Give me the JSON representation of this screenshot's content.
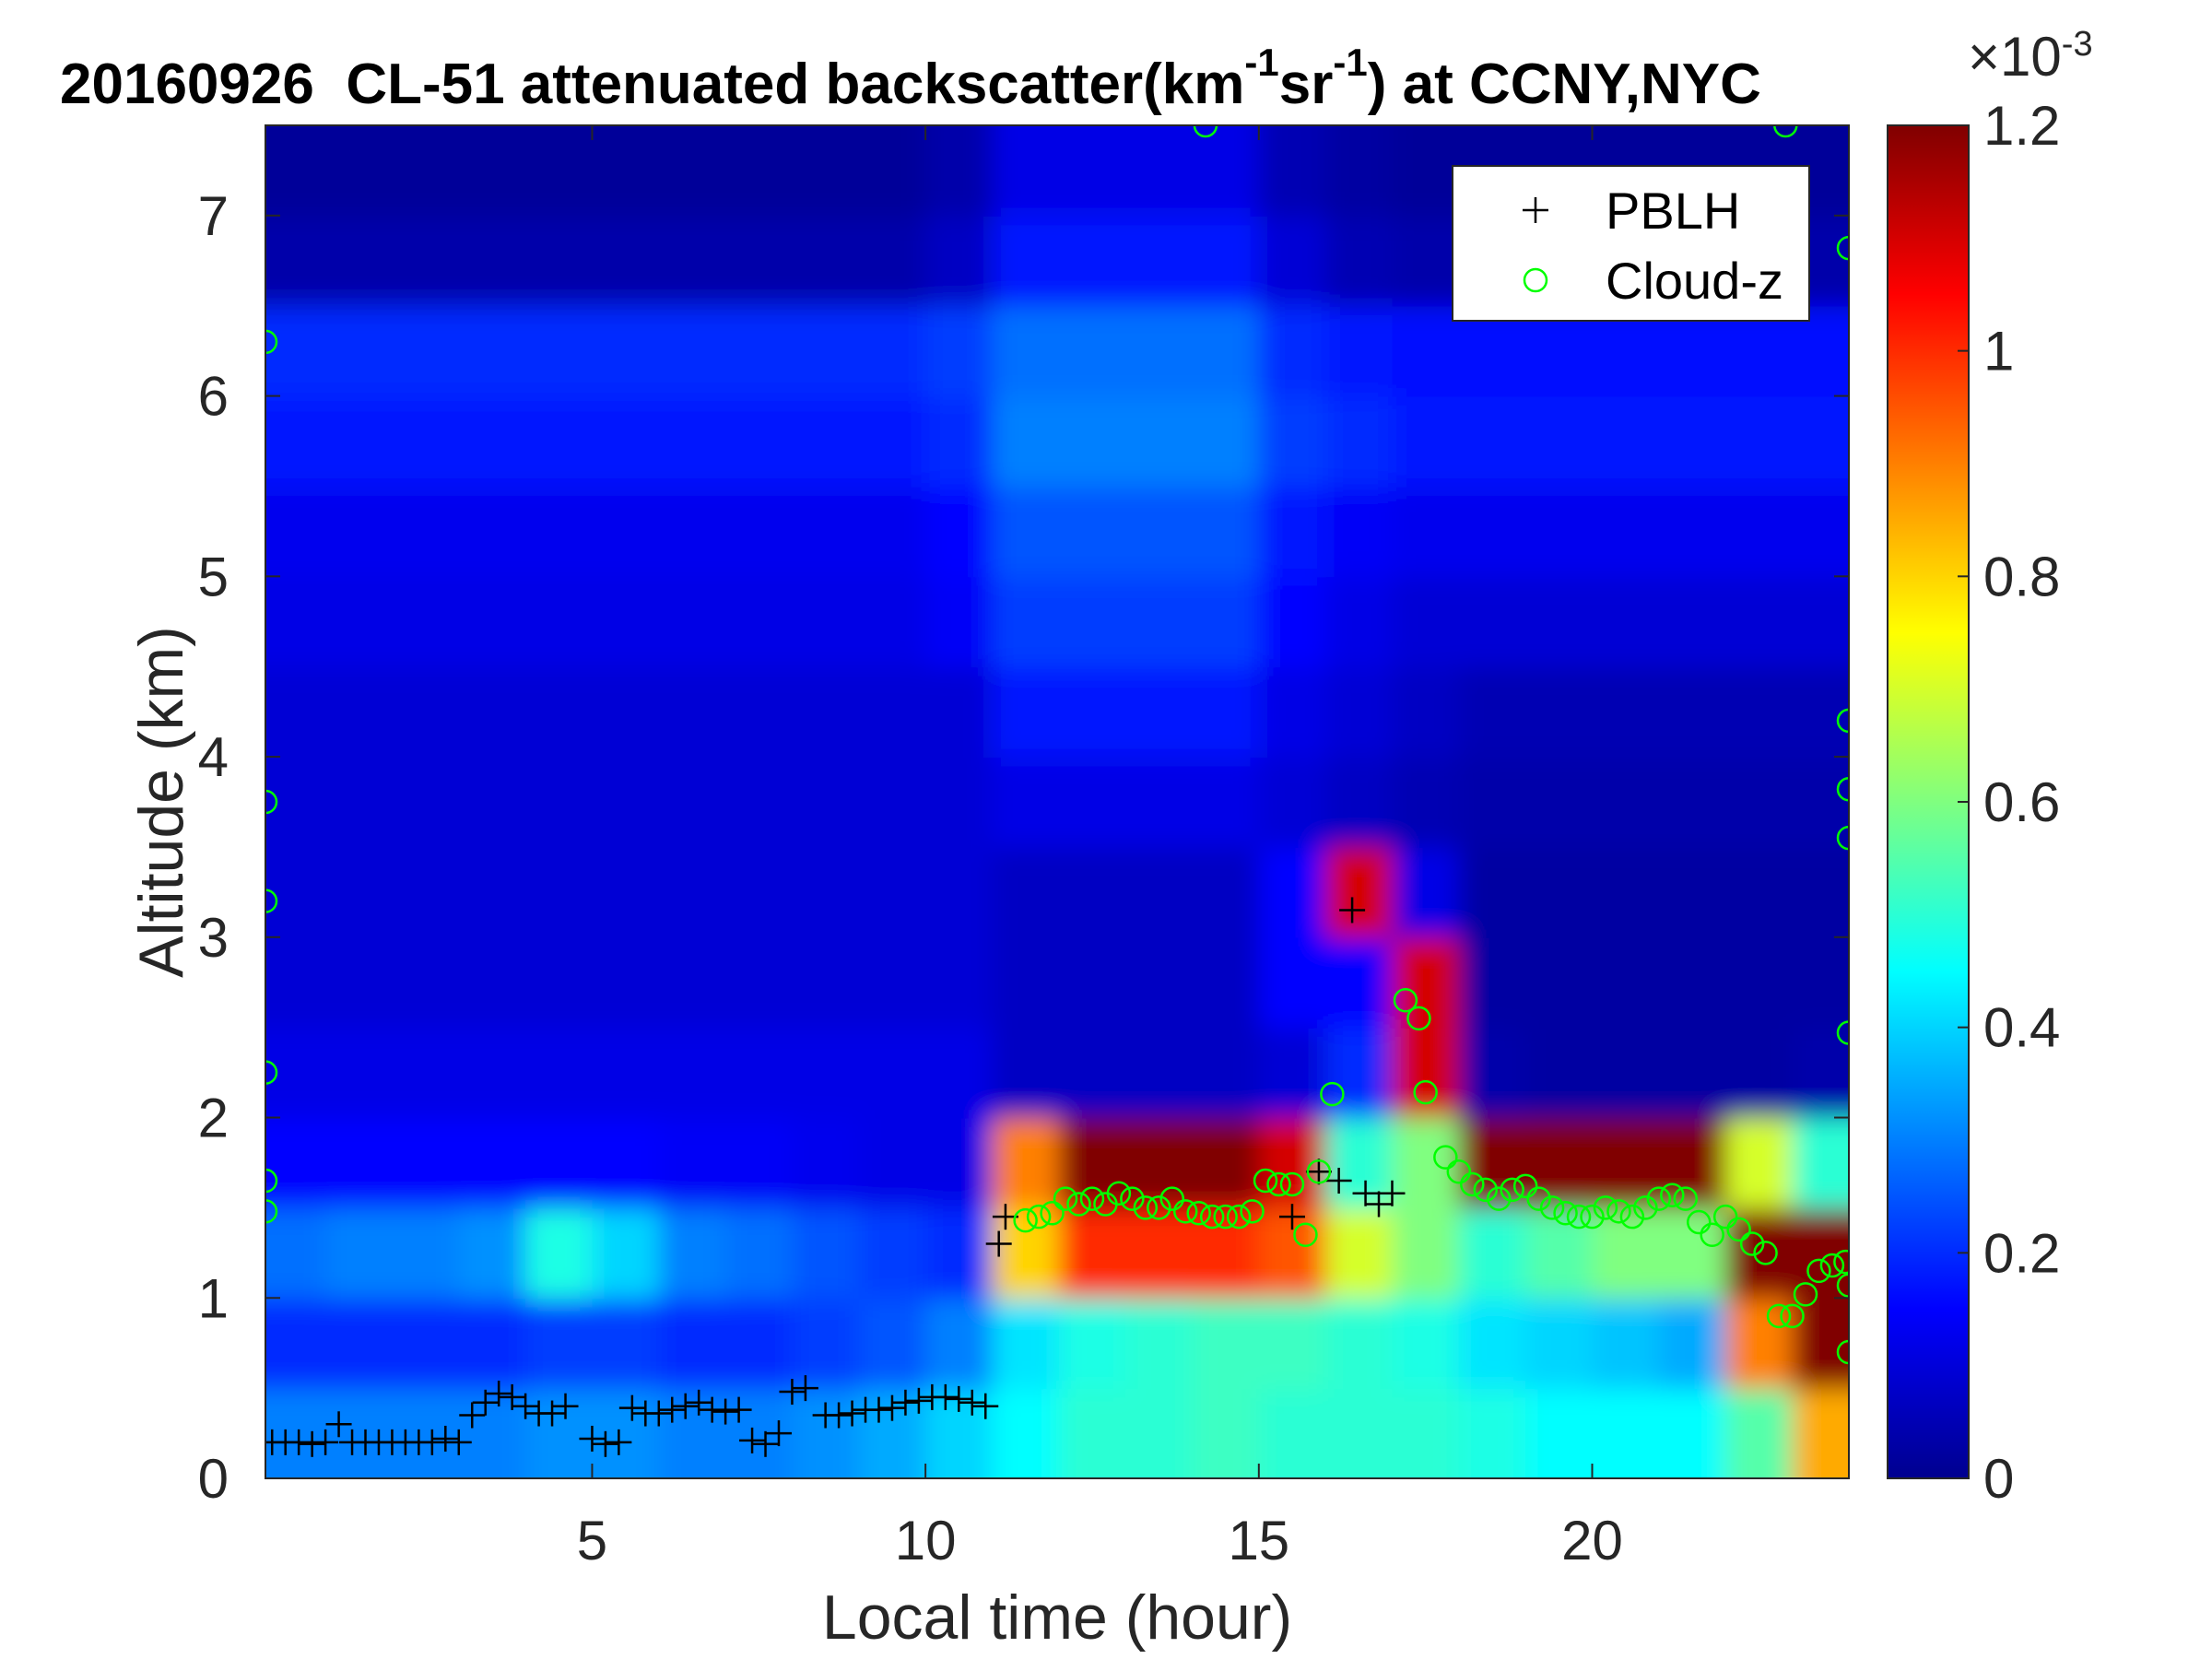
{
  "chart_data": {
    "type": "heatmap",
    "title": {
      "date": "20160926",
      "prefix": "CL-51 attenuated backscatter(km",
      "sup1": "-1",
      "mid": "sr",
      "sup2": "-1",
      "suffix": ") at CCNY,NYC"
    },
    "xlabel": "Local time (hour)",
    "ylabel": "Altitude (km)",
    "xlim": [
      0.1,
      23.85
    ],
    "ylim": [
      0,
      7.5
    ],
    "xticks": [
      5,
      10,
      15,
      20
    ],
    "yticks": [
      0,
      1,
      2,
      3,
      4,
      5,
      6,
      7
    ],
    "colorbar": {
      "range": [
        0,
        1.2
      ],
      "ticks": [
        "0",
        "0.2",
        "0.4",
        "0.6",
        "0.8",
        "1",
        "1.2"
      ],
      "multiplier_base": "10",
      "multiplier_exp": "-3",
      "multiplier_sign": "×",
      "colormap": "jet"
    },
    "grid": {
      "time_bin_hours": 1,
      "altitude_bin_km": 0.5,
      "units": "1e-3 km^-1 sr^-1",
      "rows_bottom_to_top": [
        [
          0.3,
          0.3,
          0.3,
          0.3,
          0.32,
          0.32,
          0.3,
          0.3,
          0.32,
          0.35,
          0.4,
          0.45,
          0.5,
          0.5,
          0.52,
          0.5,
          0.5,
          0.5,
          0.48,
          0.45,
          0.45,
          0.45,
          0.55,
          0.85
        ],
        [
          0.2,
          0.2,
          0.2,
          0.2,
          0.22,
          0.22,
          0.2,
          0.2,
          0.22,
          0.25,
          0.3,
          0.42,
          0.48,
          0.5,
          0.52,
          0.52,
          0.5,
          0.48,
          0.42,
          0.4,
          0.38,
          0.35,
          0.9,
          1.2
        ],
        [
          0.28,
          0.3,
          0.3,
          0.32,
          0.48,
          0.4,
          0.3,
          0.28,
          0.25,
          0.22,
          0.2,
          0.8,
          1.0,
          1.0,
          1.0,
          0.95,
          0.7,
          0.6,
          0.5,
          0.55,
          0.6,
          0.6,
          1.2,
          1.2
        ],
        [
          0.15,
          0.15,
          0.15,
          0.15,
          0.15,
          0.15,
          0.14,
          0.14,
          0.13,
          0.12,
          0.12,
          0.9,
          1.2,
          1.2,
          1.2,
          1.1,
          0.5,
          0.6,
          1.2,
          1.2,
          1.2,
          1.2,
          0.7,
          0.5
        ],
        [
          0.12,
          0.12,
          0.12,
          0.12,
          0.12,
          0.12,
          0.12,
          0.12,
          0.12,
          0.12,
          0.12,
          0.08,
          0.08,
          0.08,
          0.08,
          0.1,
          0.2,
          1.1,
          0.05,
          0.04,
          0.04,
          0.04,
          0.04,
          0.05
        ],
        [
          0.1,
          0.1,
          0.1,
          0.1,
          0.1,
          0.1,
          0.1,
          0.1,
          0.1,
          0.1,
          0.1,
          0.08,
          0.08,
          0.08,
          0.08,
          0.15,
          0.15,
          1.1,
          0.04,
          0.04,
          0.04,
          0.04,
          0.04,
          0.04
        ],
        [
          0.1,
          0.1,
          0.1,
          0.1,
          0.1,
          0.1,
          0.1,
          0.1,
          0.1,
          0.1,
          0.1,
          0.08,
          0.08,
          0.08,
          0.08,
          0.15,
          1.1,
          0.12,
          0.04,
          0.04,
          0.04,
          0.04,
          0.04,
          0.04
        ],
        [
          0.1,
          0.1,
          0.1,
          0.1,
          0.1,
          0.1,
          0.1,
          0.1,
          0.1,
          0.1,
          0.1,
          0.12,
          0.12,
          0.12,
          0.12,
          0.1,
          0.08,
          0.06,
          0.05,
          0.05,
          0.05,
          0.05,
          0.05,
          0.05
        ],
        [
          0.1,
          0.1,
          0.1,
          0.1,
          0.1,
          0.1,
          0.1,
          0.1,
          0.1,
          0.1,
          0.1,
          0.18,
          0.18,
          0.18,
          0.18,
          0.12,
          0.1,
          0.08,
          0.06,
          0.06,
          0.06,
          0.06,
          0.06,
          0.06
        ],
        [
          0.12,
          0.12,
          0.12,
          0.12,
          0.12,
          0.12,
          0.12,
          0.12,
          0.12,
          0.12,
          0.14,
          0.22,
          0.22,
          0.22,
          0.22,
          0.15,
          0.12,
          0.1,
          0.1,
          0.1,
          0.1,
          0.1,
          0.1,
          0.1
        ],
        [
          0.13,
          0.13,
          0.13,
          0.13,
          0.13,
          0.13,
          0.13,
          0.13,
          0.13,
          0.13,
          0.15,
          0.25,
          0.25,
          0.25,
          0.25,
          0.18,
          0.14,
          0.13,
          0.13,
          0.13,
          0.13,
          0.13,
          0.13,
          0.13
        ],
        [
          0.18,
          0.18,
          0.18,
          0.18,
          0.18,
          0.18,
          0.18,
          0.18,
          0.18,
          0.18,
          0.2,
          0.3,
          0.3,
          0.3,
          0.3,
          0.22,
          0.2,
          0.18,
          0.18,
          0.18,
          0.18,
          0.18,
          0.18,
          0.18
        ],
        [
          0.2,
          0.2,
          0.2,
          0.2,
          0.2,
          0.2,
          0.2,
          0.2,
          0.2,
          0.2,
          0.22,
          0.28,
          0.28,
          0.28,
          0.28,
          0.2,
          0.18,
          0.17,
          0.17,
          0.17,
          0.17,
          0.17,
          0.17,
          0.17
        ],
        [
          0.05,
          0.05,
          0.05,
          0.05,
          0.05,
          0.05,
          0.05,
          0.05,
          0.05,
          0.05,
          0.08,
          0.18,
          0.18,
          0.18,
          0.18,
          0.1,
          0.06,
          0.05,
          0.05,
          0.05,
          0.05,
          0.05,
          0.05,
          0.05
        ],
        [
          0.03,
          0.03,
          0.03,
          0.03,
          0.03,
          0.03,
          0.03,
          0.03,
          0.03,
          0.03,
          0.05,
          0.12,
          0.12,
          0.12,
          0.12,
          0.06,
          0.04,
          0.03,
          0.03,
          0.03,
          0.03,
          0.03,
          0.03,
          0.03
        ]
      ]
    },
    "legend": {
      "placement": "top-right",
      "entries": [
        {
          "label": "PBLH",
          "marker": "plus",
          "color": "#000000"
        },
        {
          "label": "Cloud-z",
          "marker": "circle",
          "color": "#00ff00"
        }
      ]
    },
    "series": [
      {
        "name": "PBLH",
        "points": [
          [
            0.2,
            0.2
          ],
          [
            0.4,
            0.2
          ],
          [
            0.6,
            0.2
          ],
          [
            0.8,
            0.19
          ],
          [
            1.0,
            0.2
          ],
          [
            1.2,
            0.3
          ],
          [
            1.4,
            0.2
          ],
          [
            1.6,
            0.2
          ],
          [
            1.8,
            0.2
          ],
          [
            2.0,
            0.2
          ],
          [
            2.2,
            0.2
          ],
          [
            2.4,
            0.2
          ],
          [
            2.6,
            0.2
          ],
          [
            2.8,
            0.22
          ],
          [
            3.0,
            0.2
          ],
          [
            3.2,
            0.35
          ],
          [
            3.4,
            0.42
          ],
          [
            3.6,
            0.47
          ],
          [
            3.8,
            0.45
          ],
          [
            4.0,
            0.4
          ],
          [
            4.2,
            0.36
          ],
          [
            4.4,
            0.36
          ],
          [
            4.6,
            0.4
          ],
          [
            5.0,
            0.22
          ],
          [
            5.2,
            0.19
          ],
          [
            5.4,
            0.2
          ],
          [
            5.6,
            0.39
          ],
          [
            5.8,
            0.36
          ],
          [
            6.0,
            0.36
          ],
          [
            6.2,
            0.38
          ],
          [
            6.4,
            0.4
          ],
          [
            6.6,
            0.42
          ],
          [
            6.8,
            0.38
          ],
          [
            7.0,
            0.37
          ],
          [
            7.2,
            0.38
          ],
          [
            7.4,
            0.21
          ],
          [
            7.6,
            0.19
          ],
          [
            7.8,
            0.25
          ],
          [
            8.0,
            0.48
          ],
          [
            8.2,
            0.5
          ],
          [
            8.5,
            0.35
          ],
          [
            8.7,
            0.35
          ],
          [
            8.9,
            0.36
          ],
          [
            9.1,
            0.38
          ],
          [
            9.3,
            0.38
          ],
          [
            9.5,
            0.39
          ],
          [
            9.7,
            0.42
          ],
          [
            9.9,
            0.43
          ],
          [
            10.1,
            0.45
          ],
          [
            10.3,
            0.45
          ],
          [
            10.5,
            0.44
          ],
          [
            10.7,
            0.42
          ],
          [
            10.9,
            0.4
          ],
          [
            11.1,
            1.3
          ],
          [
            11.2,
            1.45
          ],
          [
            15.5,
            1.45
          ],
          [
            15.9,
            1.7
          ],
          [
            16.2,
            1.65
          ],
          [
            16.4,
            3.15
          ],
          [
            16.6,
            1.58
          ],
          [
            16.8,
            1.52
          ],
          [
            17.0,
            1.58
          ]
        ]
      },
      {
        "name": "Cloud-z",
        "points": [
          [
            0.1,
            6.3
          ],
          [
            0.1,
            3.75
          ],
          [
            0.1,
            3.2
          ],
          [
            0.1,
            2.25
          ],
          [
            0.1,
            1.65
          ],
          [
            0.1,
            1.48
          ],
          [
            11.5,
            1.43
          ],
          [
            11.7,
            1.45
          ],
          [
            11.9,
            1.47
          ],
          [
            12.1,
            1.55
          ],
          [
            12.3,
            1.52
          ],
          [
            12.5,
            1.55
          ],
          [
            12.7,
            1.52
          ],
          [
            12.9,
            1.58
          ],
          [
            13.1,
            1.55
          ],
          [
            13.3,
            1.5
          ],
          [
            13.5,
            1.5
          ],
          [
            13.7,
            1.55
          ],
          [
            13.9,
            1.48
          ],
          [
            14.1,
            1.47
          ],
          [
            14.3,
            1.45
          ],
          [
            14.5,
            1.45
          ],
          [
            14.7,
            1.45
          ],
          [
            14.9,
            1.48
          ],
          [
            15.1,
            1.65
          ],
          [
            15.3,
            1.63
          ],
          [
            15.5,
            1.63
          ],
          [
            15.7,
            1.35
          ],
          [
            15.9,
            1.7
          ],
          [
            16.1,
            2.13
          ],
          [
            17.2,
            2.65
          ],
          [
            17.4,
            2.55
          ],
          [
            17.5,
            2.14
          ],
          [
            17.8,
            1.78
          ],
          [
            18.0,
            1.7
          ],
          [
            18.2,
            1.63
          ],
          [
            18.4,
            1.6
          ],
          [
            18.6,
            1.55
          ],
          [
            18.8,
            1.6
          ],
          [
            19.0,
            1.62
          ],
          [
            19.2,
            1.55
          ],
          [
            19.4,
            1.5
          ],
          [
            19.6,
            1.47
          ],
          [
            19.8,
            1.45
          ],
          [
            20.0,
            1.45
          ],
          [
            20.2,
            1.5
          ],
          [
            20.4,
            1.48
          ],
          [
            20.6,
            1.45
          ],
          [
            20.8,
            1.5
          ],
          [
            21.0,
            1.55
          ],
          [
            21.2,
            1.57
          ],
          [
            21.4,
            1.55
          ],
          [
            21.6,
            1.42
          ],
          [
            21.8,
            1.35
          ],
          [
            22.0,
            1.45
          ],
          [
            22.2,
            1.38
          ],
          [
            22.4,
            1.3
          ],
          [
            22.6,
            1.25
          ],
          [
            22.8,
            0.9
          ],
          [
            23.0,
            0.9
          ],
          [
            23.2,
            1.02
          ],
          [
            23.4,
            1.15
          ],
          [
            23.6,
            1.18
          ],
          [
            23.8,
            1.2
          ],
          [
            23.85,
            1.07
          ],
          [
            23.85,
            0.7
          ],
          [
            23.85,
            2.47
          ],
          [
            23.85,
            3.55
          ],
          [
            23.85,
            3.82
          ],
          [
            23.85,
            4.2
          ],
          [
            23.85,
            6.82
          ],
          [
            14.2,
            7.5
          ],
          [
            22.9,
            7.5
          ]
        ]
      }
    ]
  }
}
